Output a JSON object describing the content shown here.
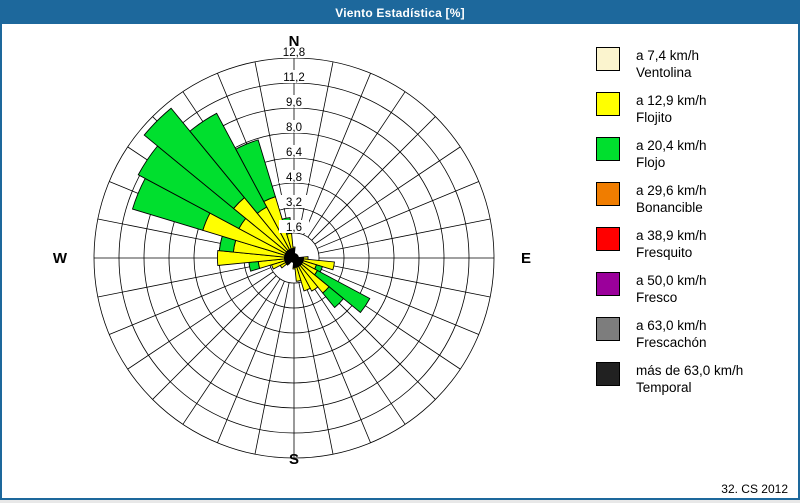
{
  "window": {
    "title": "Viento Estadística [%]",
    "footer": "32. CS 2012"
  },
  "colors": {
    "titlebar": "#1d689c",
    "window_border": "#1d689c",
    "grid": "#000000",
    "background": "#ffffff"
  },
  "chart_data": {
    "type": "windrose",
    "title": "Viento Estadística [%]",
    "units": "%",
    "sectors": 32,
    "sector_width_deg": 11.25,
    "grid": "on",
    "compass_labels": [
      {
        "label": "N",
        "bearing": 0
      },
      {
        "label": "E",
        "bearing": 90
      },
      {
        "label": "S",
        "bearing": 180
      },
      {
        "label": "W",
        "bearing": 270
      }
    ],
    "radial_axis": {
      "max": 12.8,
      "tick_values": [
        1.6,
        3.2,
        4.8,
        6.4,
        8.0,
        9.6,
        11.2,
        12.8
      ],
      "tick_labels": [
        "1,6",
        "3,2",
        "4,8",
        "6,4",
        "8,0",
        "9,6",
        "11,2",
        "12,8"
      ]
    },
    "series_order": [
      "ventolina",
      "flojito",
      "flojo"
    ],
    "series_colors": {
      "ventolina": "#FBF4CE",
      "flojito": "#FFFF00",
      "flojo": "#00DF2E"
    },
    "petals": [
      {
        "dir": "N",
        "bearing": 0.0,
        "ventolina": 0.2,
        "flojito": 0.5,
        "flojo": 0.0
      },
      {
        "dir": "E",
        "bearing": 90.0,
        "ventolina": 0.2,
        "flojito": 0.7,
        "flojo": 0.0
      },
      {
        "dir": "EbS",
        "bearing": 101.25,
        "ventolina": 0.3,
        "flojito": 2.3,
        "flojo": 0.0
      },
      {
        "dir": "ESE",
        "bearing": 112.5,
        "ventolina": 0.3,
        "flojito": 1.2,
        "flojo": 0.4
      },
      {
        "dir": "SEbE",
        "bearing": 123.75,
        "ventolina": 0.3,
        "flojito": 1.4,
        "flojo": 3.8
      },
      {
        "dir": "SE",
        "bearing": 135.0,
        "ventolina": 0.3,
        "flojito": 2.6,
        "flojo": 1.2
      },
      {
        "dir": "SEbS",
        "bearing": 146.25,
        "ventolina": 0.3,
        "flojito": 2.1,
        "flojo": 0.0
      },
      {
        "dir": "SSE",
        "bearing": 157.5,
        "ventolina": 0.3,
        "flojito": 1.9,
        "flojo": 0.0
      },
      {
        "dir": "SbE",
        "bearing": 168.75,
        "ventolina": 0.2,
        "flojito": 1.3,
        "flojo": 0.0
      },
      {
        "dir": "S",
        "bearing": 180.0,
        "ventolina": 0.2,
        "flojito": 0.5,
        "flojo": 0.0
      },
      {
        "dir": "SW",
        "bearing": 225.0,
        "ventolina": 0.2,
        "flojito": 0.3,
        "flojo": 0.0
      },
      {
        "dir": "SWbW",
        "bearing": 236.25,
        "ventolina": 0.2,
        "flojito": 0.8,
        "flojo": 0.0
      },
      {
        "dir": "WSW",
        "bearing": 247.5,
        "ventolina": 0.3,
        "flojito": 1.2,
        "flojo": 0.0
      },
      {
        "dir": "WbS",
        "bearing": 258.75,
        "ventolina": 0.3,
        "flojito": 2.0,
        "flojo": 0.6
      },
      {
        "dir": "W",
        "bearing": 270.0,
        "ventolina": 0.4,
        "flojito": 4.5,
        "flojo": 0.0
      },
      {
        "dir": "WbN",
        "bearing": 281.25,
        "ventolina": 0.4,
        "flojito": 3.5,
        "flojo": 0.9
      },
      {
        "dir": "WNW",
        "bearing": 292.5,
        "ventolina": 0.4,
        "flojito": 5.7,
        "flojo": 4.7
      },
      {
        "dir": "NWbW",
        "bearing": 303.75,
        "ventolina": 0.4,
        "flojito": 3.6,
        "flojo": 7.3
      },
      {
        "dir": "NW",
        "bearing": 315.0,
        "ventolina": 0.4,
        "flojito": 4.6,
        "flojo": 7.4
      },
      {
        "dir": "NWbN",
        "bearing": 326.25,
        "ventolina": 0.3,
        "flojito": 3.4,
        "flojo": 6.8
      },
      {
        "dir": "NNW",
        "bearing": 337.5,
        "ventolina": 0.3,
        "flojito": 3.8,
        "flojo": 3.8
      },
      {
        "dir": "NbW",
        "bearing": 348.75,
        "ventolina": 0.2,
        "flojito": 1.4,
        "flojo": 1.0
      }
    ],
    "legend": [
      {
        "speed": "a 7,4 km/h",
        "name": "Ventolina",
        "color": "#FBF4CE"
      },
      {
        "speed": "a 12,9 km/h",
        "name": "Flojito",
        "color": "#FFFF00"
      },
      {
        "speed": "a 20,4 km/h",
        "name": "Flojo",
        "color": "#00DF2E"
      },
      {
        "speed": "a 29,6 km/h",
        "name": "Bonancible",
        "color": "#F07D00"
      },
      {
        "speed": "a 38,9 km/h",
        "name": "Fresquito",
        "color": "#FF0000"
      },
      {
        "speed": "a 50,0 km/h",
        "name": "Fresco",
        "color": "#9B009B"
      },
      {
        "speed": "a 63,0 km/h",
        "name": "Frescachón",
        "color": "#7D7D7D"
      },
      {
        "speed": "más de 63,0 km/h",
        "name": "Temporal",
        "color": "#212121"
      }
    ]
  }
}
